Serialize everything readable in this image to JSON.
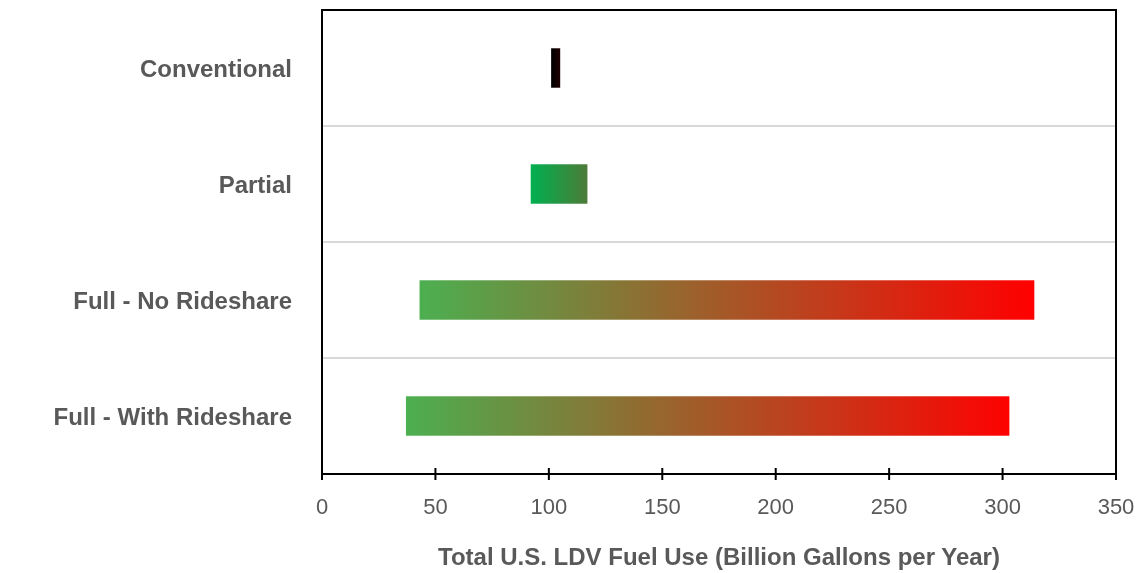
{
  "chart_data": {
    "type": "bar",
    "orientation": "horizontal",
    "xlabel": "Total U.S. LDV Fuel Use (Billion Gallons per Year)",
    "categories": [
      "Conventional",
      "Partial",
      "Full - No Rideshare",
      "Full - With Rideshare"
    ],
    "base": [
      101,
      92,
      43,
      37
    ],
    "values": [
      4,
      25,
      271,
      266
    ],
    "colors": [
      "#000000",
      "#00b050",
      "#4caf50",
      "#4caf50"
    ],
    "xlim": [
      0,
      350
    ],
    "xticks": [
      0,
      50,
      100,
      150,
      200,
      250,
      300,
      350
    ]
  }
}
